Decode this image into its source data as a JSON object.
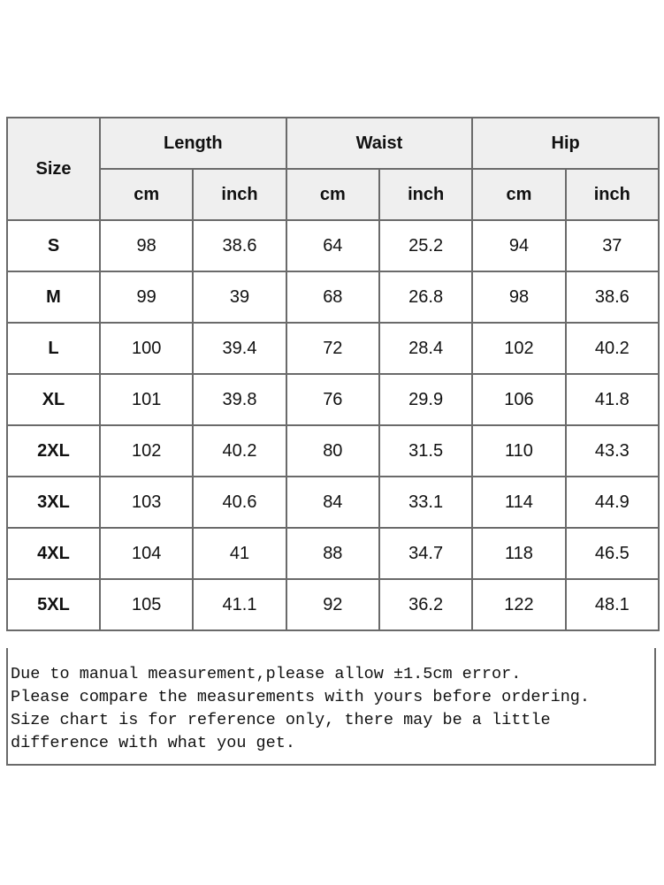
{
  "table": {
    "size_header": "Size",
    "groups": [
      "Length",
      "Waist",
      "Hip"
    ],
    "units": [
      "cm",
      "inch",
      "cm",
      "inch",
      "cm",
      "inch"
    ],
    "rows": [
      [
        "S",
        98,
        38.6,
        64,
        25.2,
        94,
        37
      ],
      [
        "M",
        99,
        39,
        68,
        26.8,
        98,
        38.6
      ],
      [
        "L",
        100,
        39.4,
        72,
        28.4,
        102,
        40.2
      ],
      [
        "XL",
        101,
        39.8,
        76,
        29.9,
        106,
        41.8
      ],
      [
        "2XL",
        102,
        40.2,
        80,
        31.5,
        110,
        43.3
      ],
      [
        "3XL",
        103,
        40.6,
        84,
        33.1,
        114,
        44.9
      ],
      [
        "4XL",
        104,
        41,
        88,
        34.7,
        118,
        46.5
      ],
      [
        "5XL",
        105,
        41.1,
        92,
        36.2,
        122,
        48.1
      ]
    ]
  },
  "note": {
    "lines": [
      "Due to manual measurement,please allow ±1.5cm error.",
      "Please compare the measurements with yours before ordering.",
      "Size chart is for reference only, there may be a little",
      "difference with what you get."
    ]
  }
}
